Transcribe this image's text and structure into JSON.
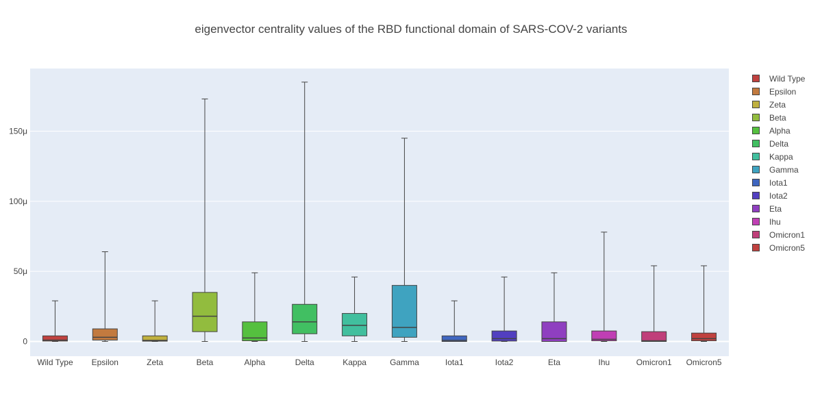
{
  "chart_data": {
    "type": "box",
    "title": "eigenvector centrality values of the RBD functional domain of SARS-COV-2 variants",
    "xlabel": "",
    "ylabel": "",
    "ylim": [
      -10,
      190
    ],
    "y_ticks": [
      0,
      50,
      100,
      150
    ],
    "y_tick_labels": [
      "0",
      "50μ",
      "100μ",
      "150μ"
    ],
    "grid": true,
    "legend_position": "right",
    "categories": [
      "Wild Type",
      "Epsilon",
      "Zeta",
      "Beta",
      "Alpha",
      "Delta",
      "Kappa",
      "Gamma",
      "Iota1",
      "Iota2",
      "Eta",
      "Ihu",
      "Omicron1",
      "Omicron5"
    ],
    "series": [
      {
        "name": "Wild Type",
        "color": "#c0413f",
        "min": 0,
        "q1": 0.3,
        "median": 1.0,
        "q3": 4.0,
        "max": 29
      },
      {
        "name": "Epsilon",
        "color": "#c27a3f",
        "min": 0,
        "q1": 1.0,
        "median": 3.0,
        "q3": 9.0,
        "max": 64
      },
      {
        "name": "Zeta",
        "color": "#bfb03f",
        "min": 0,
        "q1": 0.2,
        "median": 0.8,
        "q3": 4.0,
        "max": 29
      },
      {
        "name": "Beta",
        "color": "#92bc3e",
        "min": 0,
        "q1": 7.0,
        "median": 18.0,
        "q3": 35.0,
        "max": 173
      },
      {
        "name": "Alpha",
        "color": "#55c03f",
        "min": 0,
        "q1": 0.5,
        "median": 2.5,
        "q3": 14.0,
        "max": 49
      },
      {
        "name": "Delta",
        "color": "#41bf62",
        "min": 0,
        "q1": 5.5,
        "median": 14.0,
        "q3": 26.5,
        "max": 185
      },
      {
        "name": "Kappa",
        "color": "#41bf9e",
        "min": 0,
        "q1": 4.0,
        "median": 11.5,
        "q3": 20.0,
        "max": 46
      },
      {
        "name": "Gamma",
        "color": "#3fa3c0",
        "min": 0,
        "q1": 3.0,
        "median": 10.0,
        "q3": 40.0,
        "max": 145
      },
      {
        "name": "Iota1",
        "color": "#3f66c0",
        "min": 0,
        "q1": 0.0,
        "median": 0.8,
        "q3": 4.0,
        "max": 29
      },
      {
        "name": "Iota2",
        "color": "#523fc0",
        "min": 0,
        "q1": 0.3,
        "median": 2.0,
        "q3": 7.5,
        "max": 46
      },
      {
        "name": "Eta",
        "color": "#8f3fc0",
        "min": 0,
        "q1": 0.0,
        "median": 2.0,
        "q3": 14.0,
        "max": 49
      },
      {
        "name": "Ihu",
        "color": "#c03fb4",
        "min": 0,
        "q1": 0.5,
        "median": 1.5,
        "q3": 7.5,
        "max": 78
      },
      {
        "name": "Omicron1",
        "color": "#c03f7a",
        "min": 0,
        "q1": 0.0,
        "median": 0.5,
        "q3": 7.0,
        "max": 54
      },
      {
        "name": "Omicron5",
        "color": "#c0413f",
        "min": 0,
        "q1": 0.5,
        "median": 2.0,
        "q3": 6.0,
        "max": 54
      }
    ]
  }
}
